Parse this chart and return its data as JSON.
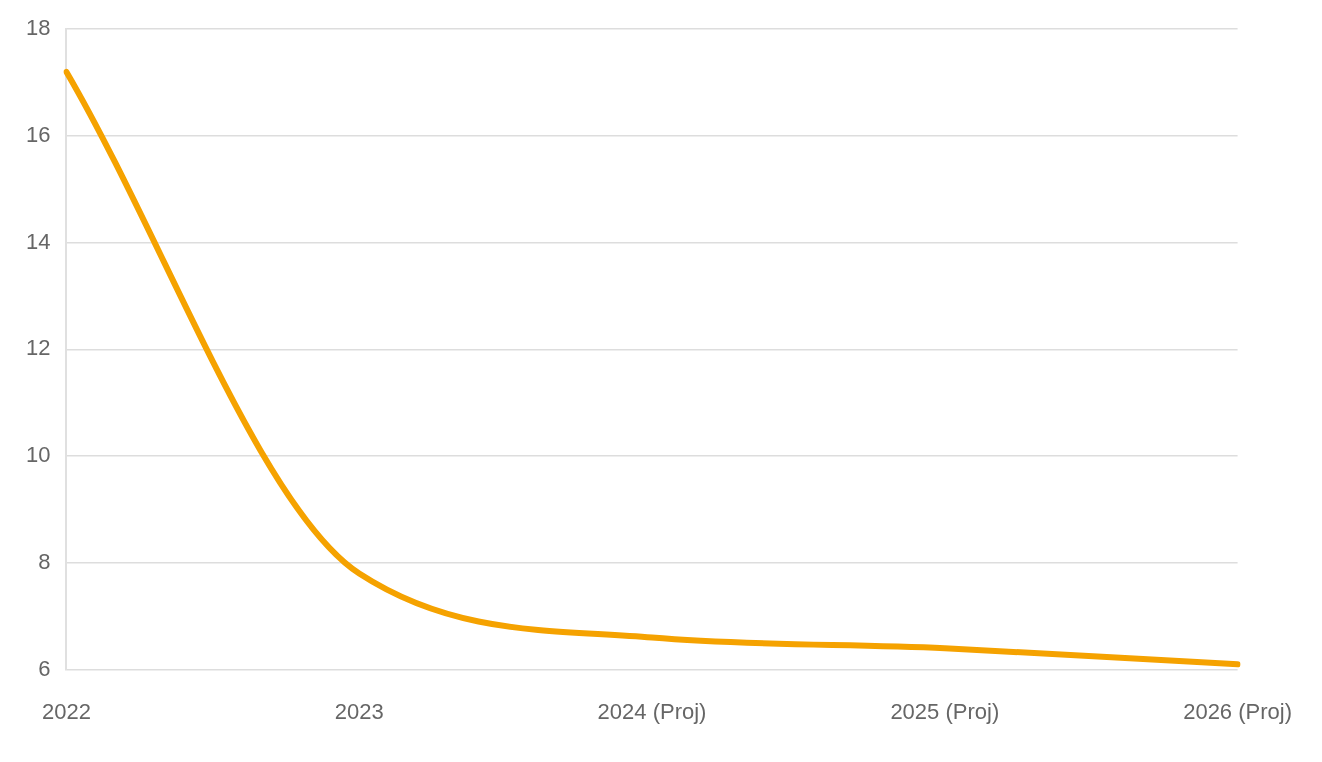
{
  "chart_data": {
    "type": "line",
    "categories": [
      "2022",
      "2023",
      "2024 (Proj)",
      "2025 (Proj)",
      "2026 (Proj)"
    ],
    "series": [
      {
        "color": "#f5a200",
        "values": [
          17.2,
          7.8,
          6.6,
          6.4,
          6.1
        ]
      }
    ],
    "ylim": [
      6,
      18
    ],
    "yticks": [
      6,
      8,
      10,
      12,
      14,
      16,
      18
    ],
    "grid": "y",
    "marker": "none",
    "line_style": "solid",
    "legend": false
  }
}
